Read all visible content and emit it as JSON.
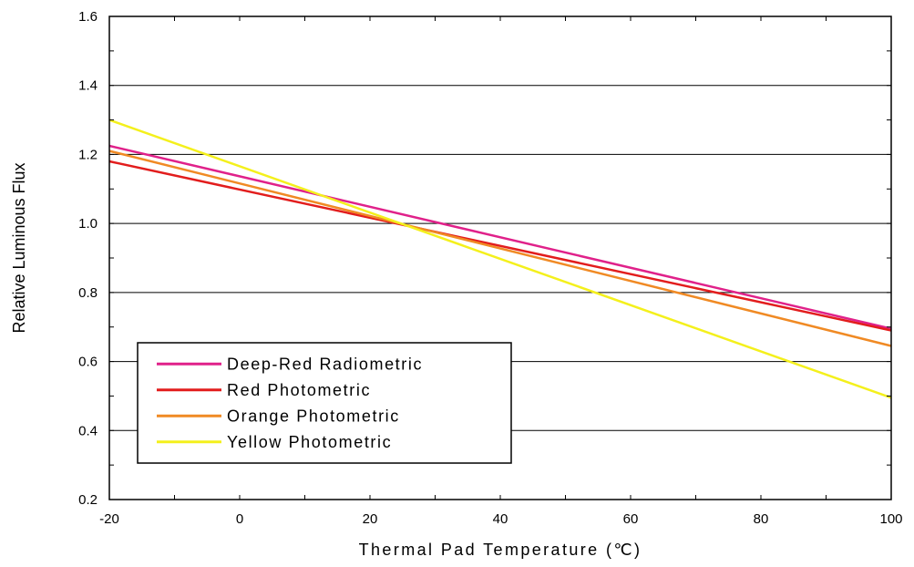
{
  "chart_data": {
    "type": "line",
    "xlabel": "Thermal Pad Temperature (℃)",
    "ylabel": "Relative Luminous Flux",
    "xlim": [
      -20,
      100
    ],
    "ylim": [
      0.2,
      1.6
    ],
    "x_ticks": [
      -20,
      0,
      20,
      40,
      60,
      80,
      100
    ],
    "x_tick_labels": [
      "-20",
      "0",
      "20",
      "40",
      "60",
      "80",
      "100"
    ],
    "y_ticks": [
      0.2,
      0.4,
      0.6,
      0.8,
      1.0,
      1.2,
      1.4,
      1.6
    ],
    "y_tick_labels": [
      "0.2",
      "0.4",
      "0.6",
      "0.8",
      "1.0",
      "1.2",
      "1.4",
      "1.6"
    ],
    "grid": "horizontal",
    "legend_position": "bottom-left",
    "series": [
      {
        "name": "Deep-Red Radiometric",
        "color": "#e0218a",
        "x": [
          -20,
          100
        ],
        "y": [
          1.225,
          0.695
        ]
      },
      {
        "name": "Red Photometric",
        "color": "#e21d1d",
        "x": [
          -20,
          100
        ],
        "y": [
          1.18,
          0.69
        ]
      },
      {
        "name": "Orange Photometric",
        "color": "#f08a24",
        "x": [
          -20,
          100
        ],
        "y": [
          1.21,
          0.645
        ]
      },
      {
        "name": "Yellow Photometric",
        "color": "#f4f01c",
        "x": [
          -20,
          100
        ],
        "y": [
          1.3,
          0.495
        ]
      }
    ]
  }
}
